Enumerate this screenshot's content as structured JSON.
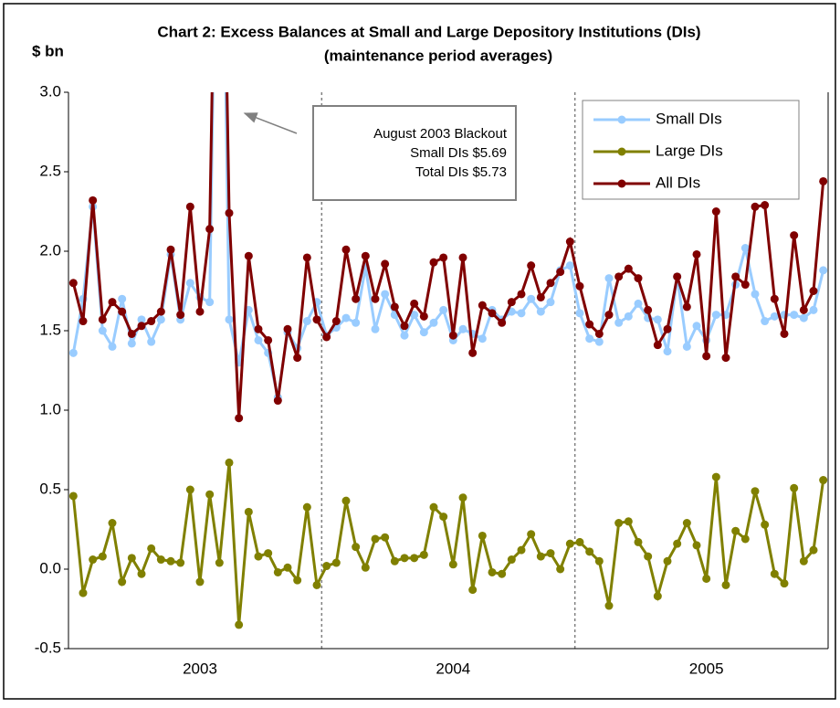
{
  "chart_data": {
    "type": "line",
    "title": [
      "Chart 2:  Excess Balances at Small and Large Depository Institutions (DIs)",
      "(maintenance period averages)"
    ],
    "y_label": "$ bn",
    "categories": [
      null,
      null,
      null,
      null,
      null,
      null,
      null,
      null,
      null,
      null,
      null,
      null,
      null,
      "2003",
      null,
      null,
      null,
      null,
      null,
      null,
      null,
      null,
      null,
      null,
      null,
      null,
      null,
      null,
      null,
      null,
      null,
      null,
      null,
      null,
      null,
      null,
      null,
      null,
      null,
      "2004",
      null,
      null,
      null,
      null,
      null,
      null,
      null,
      null,
      null,
      null,
      null,
      null,
      null,
      null,
      null,
      null,
      null,
      null,
      null,
      null,
      null,
      null,
      null,
      null,
      null,
      "2005",
      null,
      null,
      null,
      null,
      null,
      null,
      null,
      null,
      null,
      null,
      null,
      null
    ],
    "series": [
      {
        "name": "Small DIs",
        "color": "#99ccff",
        "values": [
          1.36,
          1.7,
          2.28,
          1.5,
          1.4,
          1.7,
          1.42,
          1.57,
          1.43,
          1.57,
          1.98,
          1.57,
          1.8,
          1.71,
          1.68,
          5.69,
          1.57,
          1.3,
          1.63,
          1.44,
          1.36,
          1.08,
          1.49,
          1.39,
          1.56,
          1.68,
          1.47,
          1.52,
          1.58,
          1.55,
          1.9,
          1.51,
          1.73,
          1.6,
          1.47,
          1.6,
          1.49,
          1.55,
          1.63,
          1.44,
          1.51,
          1.48,
          1.45,
          1.63,
          1.57,
          1.62,
          1.61,
          1.7,
          1.62,
          1.68,
          1.88,
          1.91,
          1.61,
          1.45,
          1.43,
          1.83,
          1.55,
          1.59,
          1.67,
          1.58,
          1.57,
          1.37,
          1.84,
          1.4,
          1.53,
          1.44,
          1.6,
          1.6,
          1.79,
          2.02,
          1.73,
          1.56,
          1.59,
          1.6,
          1.6,
          1.58,
          1.63,
          1.88
        ]
      },
      {
        "name": "Large DIs",
        "color": "#808000",
        "values": [
          0.46,
          -0.15,
          0.06,
          0.08,
          0.29,
          -0.08,
          0.07,
          -0.03,
          0.13,
          0.06,
          0.05,
          0.04,
          0.5,
          -0.08,
          0.47,
          0.04,
          0.67,
          -0.35,
          0.36,
          0.08,
          0.1,
          -0.02,
          0.01,
          -0.07,
          0.39,
          -0.1,
          0.02,
          0.04,
          0.43,
          0.14,
          0.01,
          0.19,
          0.2,
          0.05,
          0.07,
          0.07,
          0.09,
          0.39,
          0.33,
          0.03,
          0.45,
          -0.13,
          0.21,
          -0.02,
          -0.03,
          0.06,
          0.12,
          0.22,
          0.08,
          0.1,
          0.0,
          0.16,
          0.17,
          0.11,
          0.05,
          -0.23,
          0.29,
          0.3,
          0.17,
          0.08,
          -0.17,
          0.05,
          0.16,
          0.29,
          0.15,
          -0.06,
          0.58,
          -0.1,
          0.24,
          0.19,
          0.49,
          0.28,
          -0.03,
          -0.09,
          0.51,
          0.05,
          0.12,
          0.56
        ]
      },
      {
        "name": "All DIs",
        "color": "#800000",
        "values": [
          1.8,
          1.56,
          2.32,
          1.57,
          1.68,
          1.62,
          1.48,
          1.53,
          1.56,
          1.62,
          2.01,
          1.6,
          2.28,
          1.62,
          2.14,
          5.73,
          2.24,
          0.95,
          1.97,
          1.51,
          1.44,
          1.06,
          1.51,
          1.33,
          1.96,
          1.57,
          1.46,
          1.56,
          2.01,
          1.7,
          1.97,
          1.7,
          1.92,
          1.65,
          1.53,
          1.67,
          1.59,
          1.93,
          1.96,
          1.47,
          1.96,
          1.36,
          1.66,
          1.61,
          1.55,
          1.68,
          1.73,
          1.91,
          1.71,
          1.8,
          1.87,
          2.06,
          1.78,
          1.54,
          1.48,
          1.6,
          1.84,
          1.89,
          1.83,
          1.63,
          1.41,
          1.51,
          1.84,
          1.65,
          1.98,
          1.34,
          2.25,
          1.33,
          1.84,
          1.79,
          2.28,
          2.29,
          1.7,
          1.48,
          2.1,
          1.63,
          1.75,
          2.44
        ]
      }
    ],
    "ylim": [
      -0.5,
      3.0
    ],
    "yticks": [
      {
        "value": -0.5,
        "label": "-0.5"
      },
      {
        "value": 0,
        "label": "0.0"
      },
      {
        "value": 0.5,
        "label": "0.5"
      },
      {
        "value": 1,
        "label": "1.0"
      },
      {
        "value": 1.5,
        "label": "1.5"
      },
      {
        "value": 2,
        "label": "2.0"
      },
      {
        "value": 2.5,
        "label": "2.5"
      },
      {
        "value": 3,
        "label": "3.0"
      }
    ],
    "annotation": [
      "August 2003 Blackout",
      "Small DIs $5.69",
      "Total DIs $5.73"
    ],
    "legend": "top-right",
    "grid": false
  }
}
